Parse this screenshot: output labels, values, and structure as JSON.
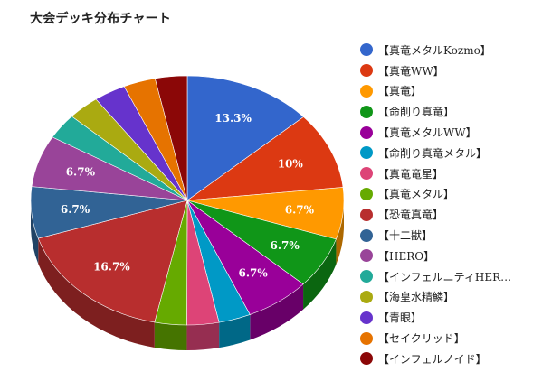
{
  "chart_data": {
    "type": "pie",
    "title": "大会デッキ分布チャート",
    "legend_position": "right",
    "three_d": true,
    "series": [
      {
        "name": "【真竜メタルKozmo】",
        "value": 13.3,
        "label": "13.3%",
        "color": "#3366cc"
      },
      {
        "name": "【真竜WW】",
        "value": 10,
        "label": "10%",
        "color": "#dc3912"
      },
      {
        "name": "【真竜】",
        "value": 6.7,
        "label": "6.7%",
        "color": "#ff9900"
      },
      {
        "name": "【命削り真竜】",
        "value": 6.7,
        "label": "6.7%",
        "color": "#109618"
      },
      {
        "name": "【真竜メタルWW】",
        "value": 6.7,
        "label": "6.7%",
        "color": "#990099"
      },
      {
        "name": "【命削り真竜メタル】",
        "value": 3.3,
        "label": "",
        "color": "#0099c6"
      },
      {
        "name": "【真竜竜星】",
        "value": 3.3,
        "label": "",
        "color": "#dd4477"
      },
      {
        "name": "【真竜メタル】",
        "value": 3.3,
        "label": "",
        "color": "#66aa00"
      },
      {
        "name": "【恐竜真竜】",
        "value": 16.7,
        "label": "16.7%",
        "color": "#b82e2e"
      },
      {
        "name": "【十二獣】",
        "value": 6.7,
        "label": "6.7%",
        "color": "#316395"
      },
      {
        "name": "【HERO】",
        "value": 6.7,
        "label": "6.7%",
        "color": "#994499"
      },
      {
        "name": "【インフェルニティHER…",
        "value": 3.3,
        "label": "",
        "color": "#22aa99"
      },
      {
        "name": "【海皇水精鱗】",
        "value": 3.3,
        "label": "",
        "color": "#aaaa11"
      },
      {
        "name": "【青眼】",
        "value": 3.3,
        "label": "",
        "color": "#6633cc"
      },
      {
        "name": "【セイクリッド】",
        "value": 3.3,
        "label": "",
        "color": "#e67300"
      },
      {
        "name": "【インフェルノイド】",
        "value": 3.3,
        "label": "",
        "color": "#8b0707"
      }
    ]
  }
}
